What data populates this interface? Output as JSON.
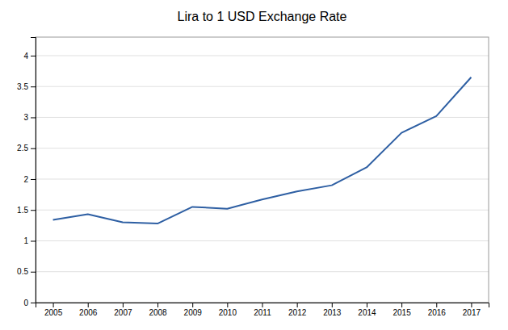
{
  "chart_data": {
    "type": "line",
    "title": "Lira to 1 USD Exchange Rate",
    "x": [
      2005,
      2006,
      2007,
      2008,
      2009,
      2010,
      2011,
      2012,
      2013,
      2014,
      2015,
      2016,
      2017
    ],
    "values": [
      1.34,
      1.43,
      1.3,
      1.28,
      1.55,
      1.52,
      1.67,
      1.8,
      1.9,
      2.19,
      2.75,
      3.02,
      3.65
    ],
    "color": "#2E5FA3",
    "xlim": [
      2004.5,
      2017.5
    ],
    "xticks": [
      2005,
      2006,
      2007,
      2008,
      2009,
      2010,
      2011,
      2012,
      2013,
      2014,
      2015,
      2016,
      2017
    ],
    "ylim": [
      0,
      4.3
    ],
    "yticks": [
      0,
      0.5,
      1,
      1.5,
      2,
      2.5,
      3,
      3.5,
      4
    ],
    "grid": true
  }
}
